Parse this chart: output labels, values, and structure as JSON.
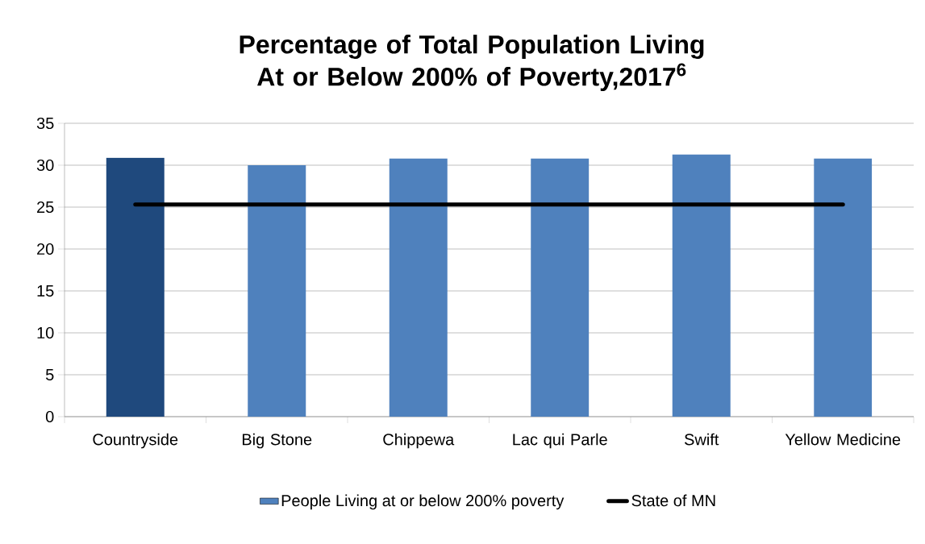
{
  "chart_data": {
    "type": "bar",
    "title": "Percentage of Total Population Living At or Below 200% of Poverty,2017$^{6}$",
    "categories": [
      "Countryside",
      "Big Stone",
      "Chippewa",
      "Lac qui Parle",
      "Swift",
      "Yellow Medicine"
    ],
    "series": [
      {
        "name": "People Living at or below 200% poverty",
        "color": "#4f81bd",
        "colors": [
          "#1f497d",
          "#4f81bd",
          "#4f81bd",
          "#4f81bd",
          "#4f81bd",
          "#4f81bd"
        ],
        "values": [
          30.9,
          30.0,
          30.8,
          30.8,
          31.3,
          30.8
        ]
      },
      {
        "type": "line",
        "name": "State of MN",
        "color": "#000000",
        "values": [
          25.3,
          25.3,
          25.3,
          25.3,
          25.3,
          25.3
        ]
      }
    ],
    "ylim": [
      0,
      35
    ],
    "yticks": [
      0,
      5,
      10,
      15,
      20,
      25,
      30,
      35
    ],
    "grid": "y",
    "legend": "bottom"
  }
}
